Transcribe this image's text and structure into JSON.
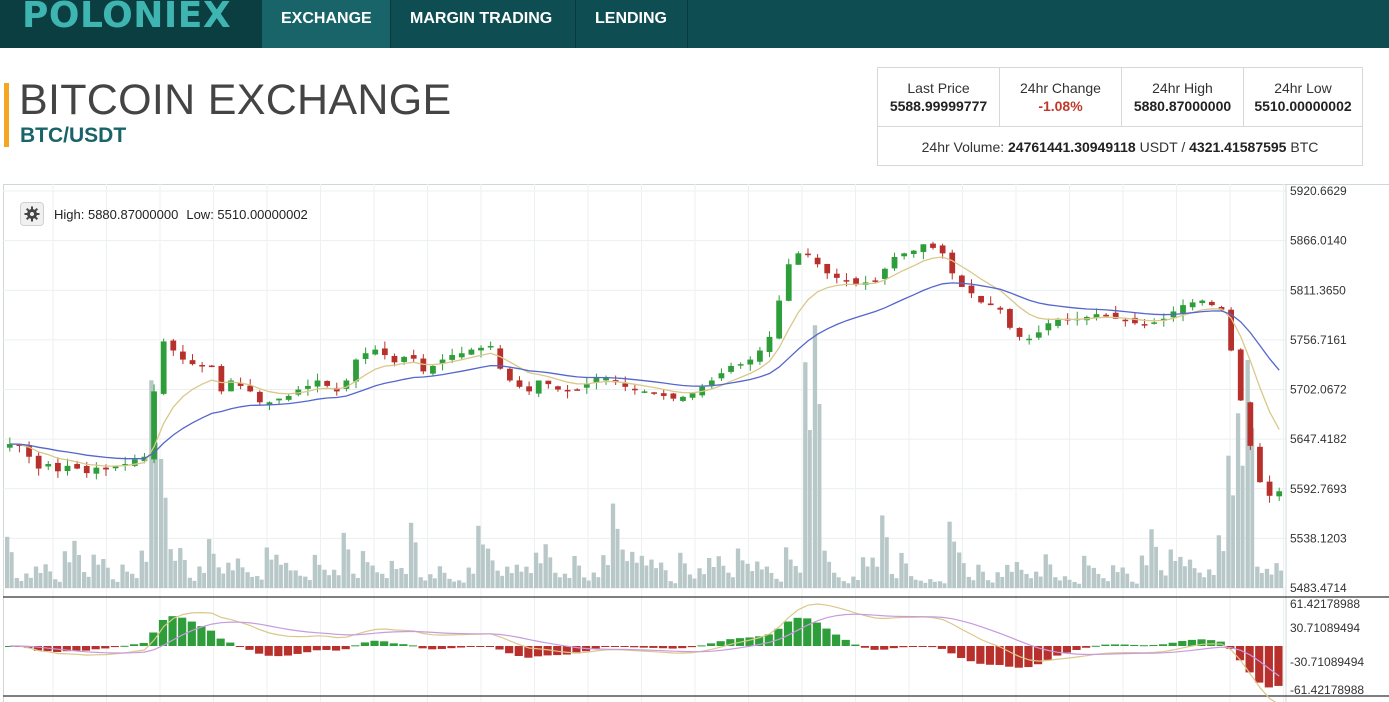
{
  "header": {
    "logo": "POLONIEX",
    "nav": [
      {
        "label": "EXCHANGE",
        "active": true
      },
      {
        "label": "MARGIN TRADING",
        "active": false
      },
      {
        "label": "LENDING",
        "active": false
      }
    ]
  },
  "page": {
    "title": "BITCOIN EXCHANGE",
    "pair": "BTC/USDT"
  },
  "stats": {
    "last_price_label": "Last Price",
    "last_price": "5588.99999777",
    "change_label": "24hr Change",
    "change": "-1.08%",
    "high_label": "24hr High",
    "high": "5880.87000000",
    "low_label": "24hr Low",
    "low": "5510.00000002",
    "volume_label": "24hr Volume:",
    "volume_usdt": "24761441.30949118",
    "usdt_unit": "USDT /",
    "volume_btc": "4321.41587595",
    "btc_unit": "BTC"
  },
  "chart": {
    "high_text": "High: 5880.87000000",
    "low_text": "Low: 5510.00000002",
    "settings_icon": "gear-icon"
  },
  "colors": {
    "up": "#2e9e3a",
    "down": "#b8302c",
    "volume": "#b8c8c8",
    "ema_fast": "#d9c88a",
    "ema_slow": "#5566cc",
    "macd_signal": "#c79be0",
    "nav_bg": "#0e4e52",
    "accent": "#f5a623"
  },
  "chart_data": {
    "type": "candlestick",
    "y_ticks": [
      "5920.6629",
      "5866.0140",
      "5811.3650",
      "5756.7161",
      "5702.0672",
      "5647.4182",
      "5592.7693",
      "5538.1203",
      "5483.4714"
    ],
    "ylim": [
      5483.4714,
      5920.6629
    ],
    "macd_ticks": [
      "61.42178988",
      "30.71089494",
      "-30.71089494",
      "-61.42178988"
    ],
    "macd_lim": [
      -61.42178988,
      61.42178988
    ],
    "close": [
      5642,
      5640,
      5628,
      5615,
      5620,
      5612,
      5618,
      5615,
      5610,
      5616,
      5614,
      5618,
      5620,
      5625,
      5628,
      5700,
      5755,
      5745,
      5735,
      5730,
      5728,
      5728,
      5700,
      5712,
      5706,
      5700,
      5688,
      5688,
      5692,
      5695,
      5702,
      5706,
      5712,
      5706,
      5700,
      5712,
      5735,
      5742,
      5746,
      5740,
      5732,
      5738,
      5736,
      5722,
      5728,
      5735,
      5740,
      5742,
      5746,
      5748,
      5750,
      5725,
      5712,
      5705,
      5700,
      5712,
      5708,
      5702,
      5700,
      5702,
      5708,
      5715,
      5715,
      5710,
      5705,
      5702,
      5700,
      5698,
      5695,
      5692,
      5694,
      5698,
      5705,
      5712,
      5720,
      5728,
      5730,
      5735,
      5745,
      5760,
      5800,
      5840,
      5852,
      5850,
      5840,
      5830,
      5825,
      5822,
      5818,
      5820,
      5822,
      5835,
      5848,
      5852,
      5855,
      5862,
      5858,
      5852,
      5830,
      5815,
      5808,
      5798,
      5795,
      5790,
      5770,
      5760,
      5758,
      5765,
      5775,
      5780,
      5778,
      5780,
      5782,
      5785,
      5784,
      5780,
      5778,
      5775,
      5774,
      5776,
      5780,
      5788,
      5795,
      5798,
      5800,
      5795,
      5790,
      5745,
      5690,
      5640,
      5600,
      5585,
      5590
    ]
  }
}
